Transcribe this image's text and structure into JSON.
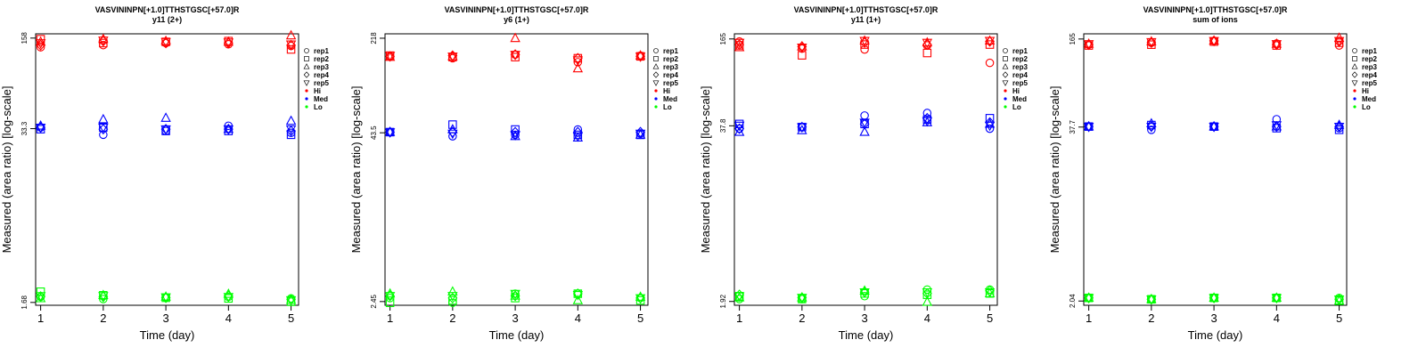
{
  "chart_data": [
    {
      "type": "scatter",
      "title": "VASVININPN[+1.0]TTHSTGSC[+57.0]R",
      "subtitle": "y11 (2+)",
      "xlabel": "Time (day)",
      "ylabel": "Measured (area ratio) [log-scale]",
      "log_y": true,
      "ylim": [
        1.6,
        170
      ],
      "yticks": [
        "158",
        "33.3",
        "1.68"
      ],
      "ytick_values": [
        158,
        33.3,
        1.68
      ],
      "x": [
        1,
        2,
        3,
        4,
        5
      ],
      "series": [
        {
          "name": "Hi",
          "color": "#ff0000",
          "values": [
            [
              135,
              140,
              145,
              142,
              138
            ],
            [
              155,
              145,
              148,
              150,
              130
            ],
            [
              148,
              155,
              150,
              148,
              165
            ],
            [
              140,
              150,
              145,
              145,
              140
            ],
            [
              145,
              152,
              148,
              147,
              142
            ]
          ]
        },
        {
          "name": "Med",
          "color": "#0000ff",
          "values": [
            [
              34,
              30,
              32,
              35,
              31
            ],
            [
              33,
              34,
              32,
              32,
              30
            ],
            [
              35,
              39,
              40,
              33,
              38
            ],
            [
              34,
              33,
              33,
              33,
              32
            ],
            [
              34,
              34,
              33,
              33,
              33
            ]
          ]
        },
        {
          "name": "Lo",
          "color": "#00ff00",
          "values": [
            [
              1.85,
              1.78,
              1.82,
              1.85,
              1.8
            ],
            [
              2.02,
              1.9,
              1.82,
              1.8,
              1.7
            ],
            [
              1.8,
              1.9,
              1.85,
              1.94,
              1.75
            ],
            [
              1.86,
              1.85,
              1.82,
              1.88,
              1.77
            ],
            [
              1.88,
              1.88,
              1.84,
              1.85,
              1.75
            ]
          ]
        }
      ],
      "legend": {
        "position": "right",
        "entries": [
          "rep1",
          "rep2",
          "rep3",
          "rep4",
          "rep5",
          "Hi",
          "Med",
          "Lo"
        ]
      }
    },
    {
      "type": "scatter",
      "title": "VASVININPN[+1.0]TTHSTGSC[+57.0]R",
      "subtitle": "y6 (1+)",
      "xlabel": "Time (day)",
      "ylabel": "Measured (area ratio) [log-scale]",
      "log_y": true,
      "ylim": [
        2.3,
        235
      ],
      "yticks": [
        "218",
        "43.5",
        "2.45"
      ],
      "ytick_values": [
        218,
        43.5,
        2.45
      ],
      "x": [
        1,
        2,
        3,
        4,
        5
      ],
      "series": [
        {
          "name": "Hi",
          "color": "#ff0000",
          "values": [
            [
              160,
              155,
              165,
              145,
              162
            ],
            [
              162,
              158,
              158,
              155,
              160
            ],
            [
              158,
              160,
              218,
              130,
              162
            ],
            [
              160,
              162,
              165,
              155,
              160
            ],
            [
              162,
              160,
              165,
              150,
              160
            ]
          ]
        },
        {
          "name": "Med",
          "color": "#0000ff",
          "values": [
            [
              44,
              41,
              42,
              46,
              43
            ],
            [
              44,
              50,
              46,
              42,
              42
            ],
            [
              44,
              46,
              41,
              40,
              42
            ],
            [
              44,
              44,
              44,
              44,
              44
            ],
            [
              44,
              43,
              42,
              41,
              43
            ]
          ]
        },
        {
          "name": "Lo",
          "color": "#00ff00",
          "values": [
            [
              2.6,
              2.4,
              2.8,
              2.8,
              2.6
            ],
            [
              2.4,
              2.5,
              2.6,
              2.8,
              2.5
            ],
            [
              2.8,
              2.9,
              2.7,
              2.5,
              2.65
            ],
            [
              2.7,
              2.6,
              2.7,
              2.8,
              2.6
            ],
            [
              2.7,
              2.7,
              2.8,
              2.75,
              2.6
            ]
          ]
        }
      ],
      "legend": {
        "position": "right",
        "entries": [
          "rep1",
          "rep2",
          "rep3",
          "rep4",
          "rep5",
          "Hi",
          "Med",
          "Lo"
        ]
      }
    },
    {
      "type": "scatter",
      "title": "VASVININPN[+1.0]TTHSTGSC[+57.0]R",
      "subtitle": "y11 (1+)",
      "xlabel": "Time (day)",
      "ylabel": "Measured (area ratio) [log-scale]",
      "log_y": true,
      "ylim": [
        1.8,
        180
      ],
      "yticks": [
        "165",
        "37.8",
        "1.92"
      ],
      "ytick_values": [
        165,
        37.8,
        1.92
      ],
      "x": [
        1,
        2,
        3,
        4,
        5
      ],
      "series": [
        {
          "name": "Hi",
          "color": "#ff0000",
          "values": [
            [
              158,
              140,
              138,
              148,
              110
            ],
            [
              148,
              125,
              150,
              130,
              150
            ],
            [
              143,
              145,
              160,
              155,
              160
            ],
            [
              150,
              145,
              155,
              150,
              158
            ],
            [
              155,
              143,
              160,
              155,
              160
            ]
          ]
        },
        {
          "name": "Med",
          "color": "#0000ff",
          "values": [
            [
              36,
              37,
              45,
              47,
              36
            ],
            [
              39,
              37,
              39,
              42,
              43
            ],
            [
              34,
              35,
              34,
              40,
              39
            ],
            [
              36,
              37,
              39,
              43,
              40
            ],
            [
              38,
              37,
              40,
              41,
              38
            ]
          ]
        },
        {
          "name": "Lo",
          "color": "#00ff00",
          "values": [
            [
              2.0,
              2.0,
              2.1,
              2.35,
              2.35
            ],
            [
              2.1,
              2.0,
              2.2,
              2.15,
              2.2
            ],
            [
              2.05,
              2.05,
              2.3,
              1.9,
              2.2
            ],
            [
              2.15,
              2.05,
              2.25,
              2.2,
              2.3
            ],
            [
              2.1,
              2.05,
              2.25,
              2.25,
              2.25
            ]
          ]
        }
      ],
      "legend": {
        "position": "right",
        "entries": [
          "rep1",
          "rep2",
          "rep3",
          "rep4",
          "rep5",
          "Hi",
          "Med",
          "Lo"
        ]
      }
    },
    {
      "type": "scatter",
      "title": "VASVININPN[+1.0]TTHSTGSC[+57.0]R",
      "subtitle": "sum of ions",
      "xlabel": "Time (day)",
      "ylabel": "Measured (area ratio) [log-scale]",
      "log_y": true,
      "ylim": [
        1.9,
        180
      ],
      "yticks": [
        "165",
        "37.7",
        "2.04"
      ],
      "ytick_values": [
        165,
        37.7,
        2.04
      ],
      "x": [
        1,
        2,
        3,
        4,
        5
      ],
      "series": [
        {
          "name": "Hi",
          "color": "#ff0000",
          "values": [
            [
              150,
              155,
              160,
              153,
              148
            ],
            [
              148,
              150,
              158,
              148,
              155
            ],
            [
              152,
              158,
              160,
              152,
              168
            ],
            [
              150,
              155,
              160,
              150,
              158
            ],
            [
              152,
              157,
              160,
              152,
              160
            ]
          ]
        },
        {
          "name": "Med",
          "color": "#0000ff",
          "values": [
            [
              38,
              36,
              38,
              43,
              37
            ],
            [
              38,
              39,
              38,
              37,
              36
            ],
            [
              38,
              40,
              38,
              38,
              39
            ],
            [
              38,
              38,
              38,
              38,
              38
            ],
            [
              38,
              38,
              38,
              39,
              38
            ]
          ]
        },
        {
          "name": "Lo",
          "color": "#00ff00",
          "values": [
            [
              2.15,
              2.1,
              2.15,
              2.15,
              2.15
            ],
            [
              2.15,
              2.1,
              2.15,
              2.15,
              2.05
            ],
            [
              2.15,
              2.1,
              2.15,
              2.15,
              2.05
            ],
            [
              2.15,
              2.1,
              2.15,
              2.15,
              2.1
            ],
            [
              2.15,
              2.1,
              2.15,
              2.15,
              2.1
            ]
          ]
        }
      ],
      "legend": {
        "position": "right",
        "entries": [
          "rep1",
          "rep2",
          "rep3",
          "rep4",
          "rep5",
          "Hi",
          "Med",
          "Lo"
        ]
      }
    }
  ]
}
